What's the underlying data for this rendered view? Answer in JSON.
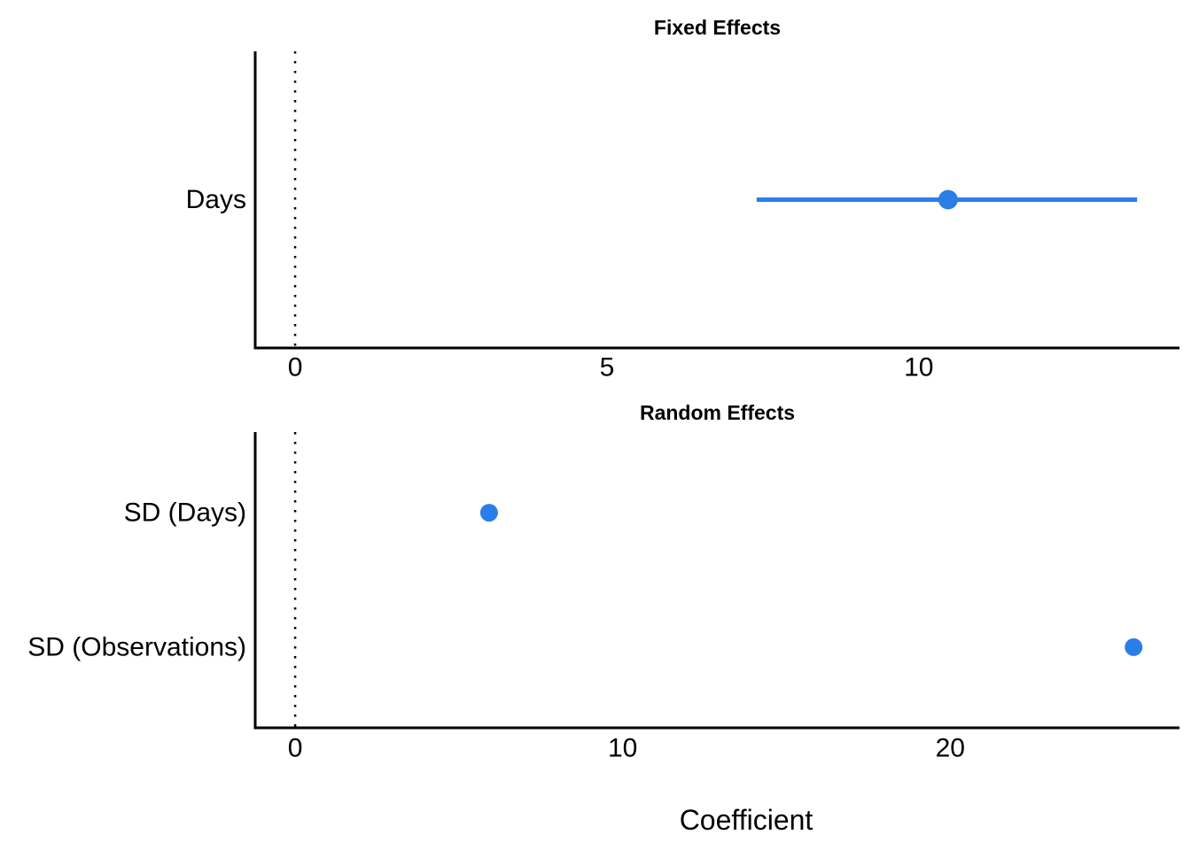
{
  "figure": {
    "xlabel": "Coefficient",
    "colors": {
      "point": "#2b7de8",
      "axis": "#000000",
      "text": "#000000",
      "background": "#ffffff"
    }
  },
  "chart_data": [
    {
      "type": "scatter",
      "title": "Fixed Effects",
      "orientation": "horizontal",
      "xlim": [
        -0.64,
        14.18
      ],
      "xticks": [
        0,
        5,
        10
      ],
      "zero_line": 0,
      "grid": false,
      "legend": false,
      "rows": [
        {
          "label": "Days",
          "estimate": 10.47,
          "ci_low": 7.4,
          "ci_high": 13.5
        }
      ]
    },
    {
      "type": "scatter",
      "title": "Random Effects",
      "orientation": "horizontal",
      "xlim": [
        -1.22,
        27.0
      ],
      "xticks": [
        0,
        10,
        20
      ],
      "zero_line": 0,
      "grid": false,
      "legend": false,
      "rows": [
        {
          "label": "SD (Days)",
          "estimate": 5.92,
          "ci_low": null,
          "ci_high": null
        },
        {
          "label": "SD (Observations)",
          "estimate": 25.6,
          "ci_low": null,
          "ci_high": null
        }
      ]
    }
  ]
}
